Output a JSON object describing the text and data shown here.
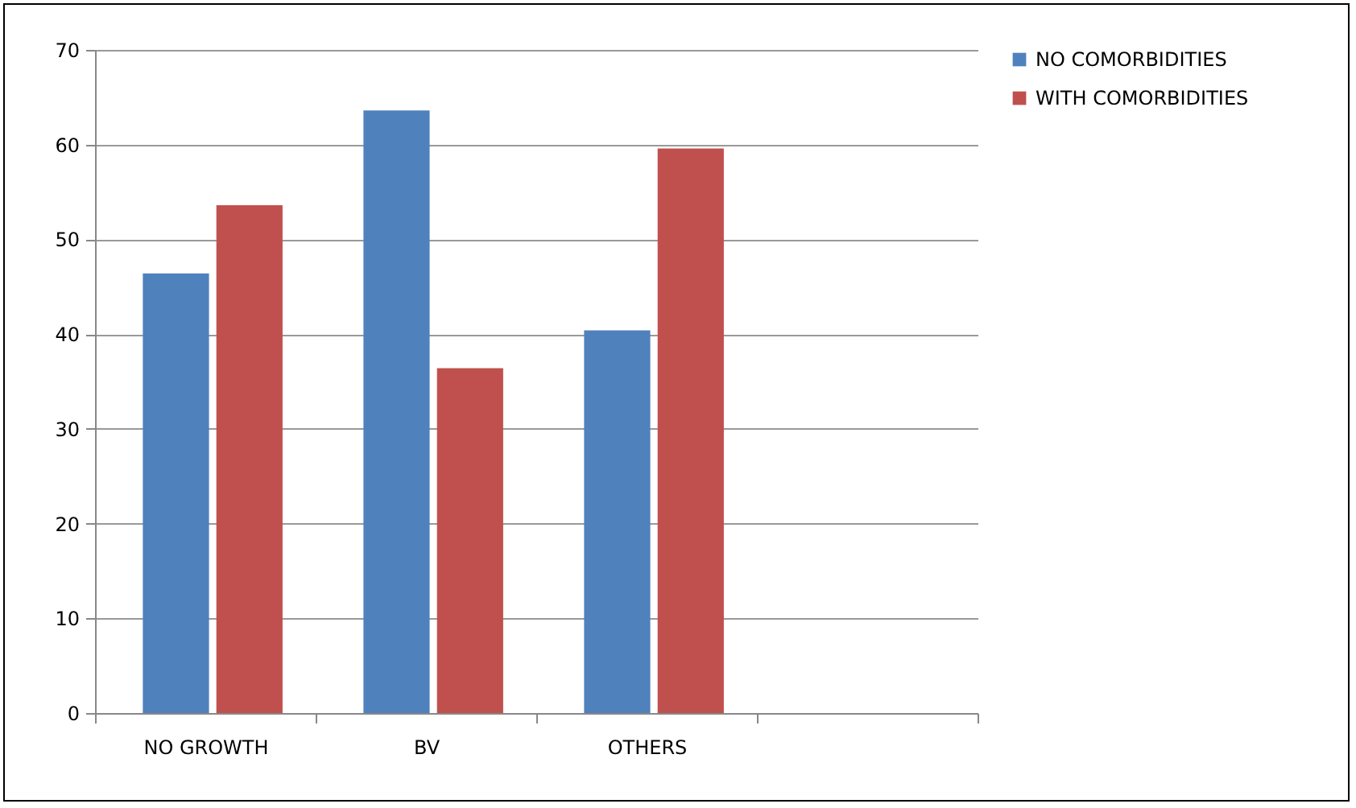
{
  "chart_data": {
    "type": "bar",
    "categories": [
      "NO GROWTH",
      "BV",
      "OTHERS",
      null
    ],
    "series": [
      {
        "name": "NO COMORBIDITIES",
        "color": "#4f81bd",
        "values": [
          46.4,
          63.6,
          40.4,
          null
        ]
      },
      {
        "name": "WITH COMORBIDITIES",
        "color": "#c0504d",
        "values": [
          53.6,
          36.4,
          59.6,
          null
        ]
      }
    ],
    "ylim": [
      0,
      70
    ],
    "yticks": [
      0,
      10,
      20,
      30,
      40,
      50,
      60,
      70
    ],
    "grid": "y",
    "legend": "right"
  }
}
